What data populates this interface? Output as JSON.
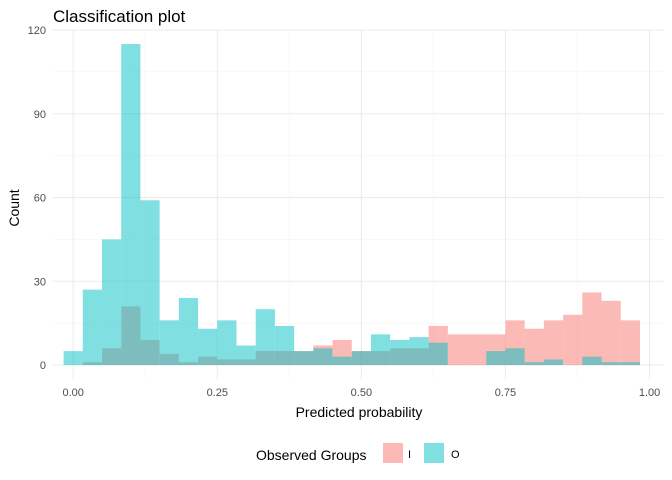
{
  "chart_data": {
    "type": "bar",
    "title": "Classification plot",
    "xlabel": "Predicted probability",
    "ylabel": "Count",
    "xlim": [
      -0.035,
      1.025
    ],
    "ylim": [
      -5,
      120
    ],
    "x_ticks": [
      0.0,
      0.25,
      0.5,
      0.75,
      1.0
    ],
    "x_tick_labels": [
      "0.00",
      "0.25",
      "0.50",
      "0.75",
      "1.00"
    ],
    "y_ticks": [
      0,
      30,
      60,
      90,
      120
    ],
    "y_tick_labels": [
      "0",
      "30",
      "60",
      "90",
      "120"
    ],
    "bin_centers": [
      0.0,
      0.0333,
      0.0667,
      0.1,
      0.1333,
      0.1667,
      0.2,
      0.2333,
      0.2667,
      0.3,
      0.3333,
      0.3667,
      0.4,
      0.4333,
      0.4667,
      0.5,
      0.5333,
      0.5667,
      0.6,
      0.6333,
      0.6667,
      0.7,
      0.7333,
      0.7667,
      0.8,
      0.8333,
      0.8667,
      0.9,
      0.9333,
      0.9667
    ],
    "bin_width": 0.0333,
    "grid": true,
    "legend_position": "bottom",
    "legend_title": "Observed Groups",
    "series": [
      {
        "name": "I",
        "color": "#F8766D",
        "values": [
          0,
          1,
          6,
          21,
          9,
          4,
          1,
          3,
          2,
          2,
          5,
          5,
          5,
          7,
          9,
          5,
          5,
          6,
          6,
          14,
          11,
          11,
          11,
          16,
          13,
          16,
          18,
          26,
          23,
          16
        ]
      },
      {
        "name": "O",
        "color": "#00BFC4",
        "values": [
          5,
          27,
          45,
          115,
          59,
          16,
          24,
          13,
          16,
          7,
          20,
          14,
          5,
          6,
          3,
          5,
          11,
          9,
          10,
          8,
          0,
          0,
          5,
          6,
          1,
          2,
          0,
          3,
          1,
          1
        ]
      }
    ]
  }
}
